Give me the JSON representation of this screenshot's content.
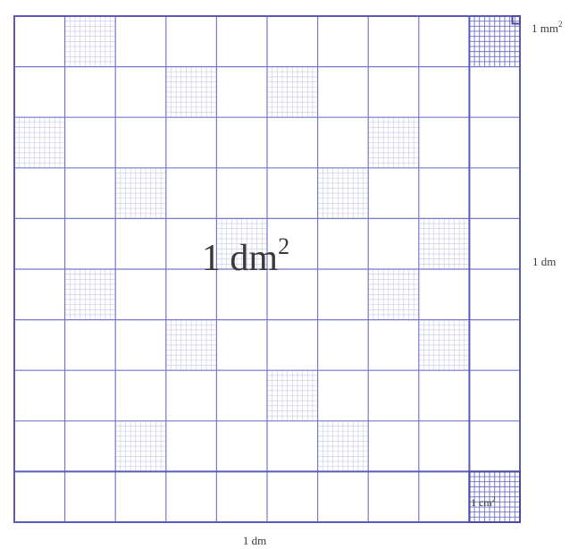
{
  "labels": {
    "main_area": "1 dm",
    "main_area_exp": "2",
    "small_square": "1 mm",
    "small_square_exp": "2",
    "centimeter_square": "1 cm",
    "centimeter_square_exp": "2",
    "side_right": "1 dm",
    "side_bottom": "1 dm"
  },
  "grid": {
    "divisions": 10,
    "sub_divisions": 10
  },
  "colors": {
    "grid_line": "#7777cc",
    "major_line": "#5a5ab8",
    "fine_line": "#c8c8e6",
    "hatch": "#6f6fc4",
    "text": "#3a3a3a"
  }
}
